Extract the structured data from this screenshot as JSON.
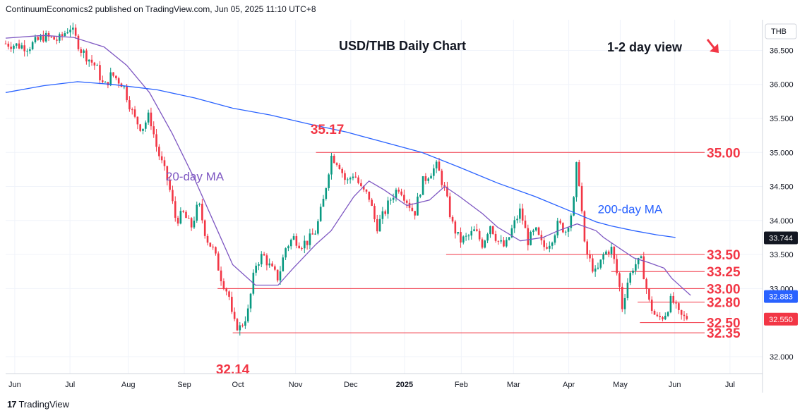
{
  "header": {
    "attribution": "ContinuumEconomics2 published on TradingView.com, Jun 05, 2025 11:10 UTC+8"
  },
  "footer": {
    "logo_mark": "17",
    "brand": "TradingView"
  },
  "chart_data": {
    "type": "candlestick",
    "title": "USD/THB Daily Chart",
    "view_label": "1-2 day view",
    "currency": "THB",
    "ylim": [
      31.75,
      36.95
    ],
    "y_ticks": [
      "36.500",
      "36.000",
      "35.500",
      "35.000",
      "34.500",
      "34.000",
      "33.500",
      "33.000",
      "32.000"
    ],
    "x_ticks": [
      "Jun",
      "Jul",
      "Aug",
      "Sep",
      "Oct",
      "Nov",
      "Dec",
      "2025",
      "Feb",
      "Mar",
      "Apr",
      "May",
      "Jun",
      "Jul"
    ],
    "colors": {
      "up": "#089981",
      "down": "#f23645",
      "level": "#f23645",
      "ma20": "#7e57c2",
      "ma200": "#2962ff",
      "price_tag": "#f23645",
      "ma_tag": "#2962ff"
    },
    "price_tags": {
      "last": "32.550",
      "ma200": "33.744",
      "ma20": "32.883"
    },
    "series": [
      {
        "name": "20-day MA",
        "points": [
          [
            0.0,
            36.68
          ],
          [
            0.05,
            36.72
          ],
          [
            0.09,
            36.69
          ],
          [
            0.13,
            36.55
          ],
          [
            0.16,
            36.28
          ],
          [
            0.19,
            35.88
          ],
          [
            0.22,
            35.28
          ],
          [
            0.25,
            34.6
          ],
          [
            0.28,
            33.85
          ],
          [
            0.3,
            33.35
          ],
          [
            0.33,
            33.05
          ],
          [
            0.36,
            33.05
          ],
          [
            0.38,
            33.3
          ],
          [
            0.41,
            33.65
          ],
          [
            0.43,
            33.85
          ],
          [
            0.46,
            34.35
          ],
          [
            0.48,
            34.58
          ],
          [
            0.5,
            34.45
          ],
          [
            0.53,
            34.22
          ],
          [
            0.56,
            34.3
          ],
          [
            0.58,
            34.5
          ],
          [
            0.6,
            34.35
          ],
          [
            0.63,
            34.1
          ],
          [
            0.65,
            33.9
          ],
          [
            0.68,
            33.7
          ],
          [
            0.71,
            33.75
          ],
          [
            0.73,
            33.85
          ],
          [
            0.755,
            33.95
          ],
          [
            0.78,
            33.85
          ],
          [
            0.79,
            33.75
          ],
          [
            0.81,
            33.6
          ],
          [
            0.83,
            33.45
          ],
          [
            0.85,
            33.38
          ],
          [
            0.87,
            33.3
          ],
          [
            0.88,
            33.15
          ],
          [
            0.895,
            33.0
          ],
          [
            0.905,
            32.9
          ]
        ]
      },
      {
        "name": "200-day MA",
        "points": [
          [
            0.0,
            35.88
          ],
          [
            0.05,
            35.98
          ],
          [
            0.095,
            36.04
          ],
          [
            0.14,
            36.0
          ],
          [
            0.2,
            35.92
          ],
          [
            0.25,
            35.8
          ],
          [
            0.3,
            35.65
          ],
          [
            0.35,
            35.55
          ],
          [
            0.4,
            35.42
          ],
          [
            0.45,
            35.3
          ],
          [
            0.5,
            35.15
          ],
          [
            0.55,
            35.0
          ],
          [
            0.6,
            34.78
          ],
          [
            0.65,
            34.55
          ],
          [
            0.7,
            34.35
          ],
          [
            0.75,
            34.12
          ],
          [
            0.78,
            33.98
          ],
          [
            0.8,
            33.92
          ],
          [
            0.83,
            33.85
          ],
          [
            0.86,
            33.79
          ],
          [
            0.885,
            33.75
          ]
        ]
      }
    ],
    "levels": [
      {
        "label": "35.00",
        "value": 35.0,
        "x_start": 0.41
      },
      {
        "label": "33.50",
        "value": 33.5,
        "x_start": 0.582
      },
      {
        "label": "33.25",
        "value": 33.25,
        "x_start": 0.8
      },
      {
        "label": "33.00",
        "value": 33.0,
        "x_start": 0.28
      },
      {
        "label": "32.80",
        "value": 32.8,
        "x_start": 0.835
      },
      {
        "label": "32.50",
        "value": 32.5,
        "x_start": 0.838
      },
      {
        "label": "32.35",
        "value": 32.35,
        "x_start": 0.3
      }
    ],
    "annotations": [
      {
        "text": "35.17",
        "x": 0.425,
        "value": 35.17
      },
      {
        "text": "32.14",
        "x": 0.3,
        "value": 32.14
      },
      {
        "text": "20-day MA",
        "x": 0.25,
        "value": 34.65
      },
      {
        "text": "200-day MA",
        "x": 0.825,
        "value": 34.17
      }
    ],
    "price_anchors": [
      [
        0.0,
        36.6
      ],
      [
        0.03,
        36.55
      ],
      [
        0.05,
        36.7
      ],
      [
        0.07,
        36.65
      ],
      [
        0.085,
        36.85
      ],
      [
        0.1,
        36.5
      ],
      [
        0.12,
        36.25
      ],
      [
        0.13,
        35.95
      ],
      [
        0.14,
        36.15
      ],
      [
        0.155,
        36.0
      ],
      [
        0.17,
        35.5
      ],
      [
        0.18,
        35.35
      ],
      [
        0.19,
        35.55
      ],
      [
        0.2,
        35.05
      ],
      [
        0.215,
        34.55
      ],
      [
        0.225,
        34.0
      ],
      [
        0.235,
        34.1
      ],
      [
        0.245,
        33.9
      ],
      [
        0.255,
        34.25
      ],
      [
        0.265,
        33.75
      ],
      [
        0.275,
        33.55
      ],
      [
        0.285,
        33.15
      ],
      [
        0.295,
        32.9
      ],
      [
        0.3,
        32.5
      ],
      [
        0.31,
        32.42
      ],
      [
        0.32,
        32.65
      ],
      [
        0.33,
        33.35
      ],
      [
        0.34,
        33.5
      ],
      [
        0.35,
        33.3
      ],
      [
        0.36,
        33.15
      ],
      [
        0.37,
        33.6
      ],
      [
        0.38,
        33.75
      ],
      [
        0.39,
        33.65
      ],
      [
        0.4,
        33.7
      ],
      [
        0.41,
        33.85
      ],
      [
        0.42,
        34.3
      ],
      [
        0.43,
        34.95
      ],
      [
        0.44,
        34.85
      ],
      [
        0.45,
        34.55
      ],
      [
        0.46,
        34.7
      ],
      [
        0.47,
        34.45
      ],
      [
        0.48,
        34.35
      ],
      [
        0.49,
        33.9
      ],
      [
        0.5,
        34.1
      ],
      [
        0.51,
        34.35
      ],
      [
        0.52,
        34.5
      ],
      [
        0.53,
        34.3
      ],
      [
        0.54,
        34.1
      ],
      [
        0.55,
        34.55
      ],
      [
        0.56,
        34.7
      ],
      [
        0.57,
        34.8
      ],
      [
        0.58,
        34.45
      ],
      [
        0.59,
        33.95
      ],
      [
        0.6,
        33.7
      ],
      [
        0.61,
        33.75
      ],
      [
        0.62,
        33.85
      ],
      [
        0.63,
        33.65
      ],
      [
        0.64,
        33.95
      ],
      [
        0.65,
        33.7
      ],
      [
        0.66,
        33.6
      ],
      [
        0.67,
        33.9
      ],
      [
        0.68,
        34.15
      ],
      [
        0.69,
        33.7
      ],
      [
        0.7,
        33.85
      ],
      [
        0.71,
        33.6
      ],
      [
        0.72,
        33.7
      ],
      [
        0.73,
        33.95
      ],
      [
        0.74,
        33.85
      ],
      [
        0.75,
        34.2
      ],
      [
        0.755,
        34.9
      ],
      [
        0.76,
        34.3
      ],
      [
        0.765,
        33.6
      ],
      [
        0.77,
        33.45
      ],
      [
        0.78,
        33.2
      ],
      [
        0.79,
        33.5
      ],
      [
        0.8,
        33.6
      ],
      [
        0.81,
        33.1
      ],
      [
        0.815,
        32.7
      ],
      [
        0.82,
        33.05
      ],
      [
        0.83,
        33.35
      ],
      [
        0.84,
        33.4
      ],
      [
        0.845,
        33.1
      ],
      [
        0.85,
        32.8
      ],
      [
        0.86,
        32.55
      ],
      [
        0.87,
        32.6
      ],
      [
        0.88,
        32.85
      ],
      [
        0.89,
        32.6
      ],
      [
        0.9,
        32.55
      ]
    ]
  }
}
